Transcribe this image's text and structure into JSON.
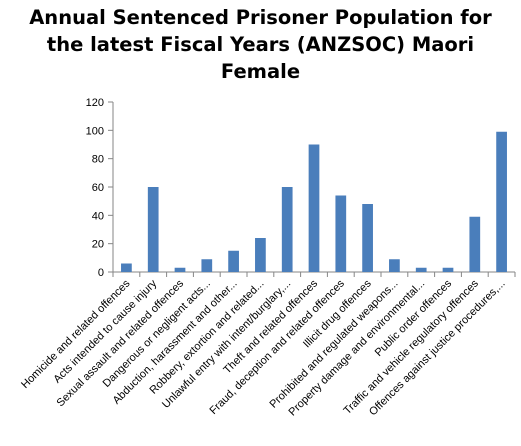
{
  "chart_data": {
    "type": "bar",
    "title_lines": [
      "Annual Sentenced Prisoner Population for",
      "the latest Fiscal Years (ANZSOC) Maori",
      "Female"
    ],
    "categories": [
      "Homicide and related offences",
      "Acts intended to cause injury",
      "Sexual assault and related offences",
      "Dangerous or negligent acts...",
      "Abduction, harassment and other...",
      "Robbery, extortion and related...",
      "Unlawful entry with intent/burglary,...",
      "Theft and related offences",
      "Fraud, deception and related offences",
      "Illicit drug offences",
      "Prohibited and regulated weapons...",
      "Property damage and environmental...",
      "Public order offences",
      "Traffic and vehicle regulatory offences",
      "Offences against justice procedures,..."
    ],
    "values": [
      6,
      60,
      3,
      9,
      15,
      24,
      60,
      90,
      54,
      48,
      9,
      3,
      3,
      39,
      99
    ],
    "ylim": [
      0,
      120
    ],
    "yticks": [
      0,
      20,
      40,
      60,
      80,
      100,
      120
    ],
    "grid": false,
    "legend": "none",
    "bar_color": "#4a7ebb"
  }
}
